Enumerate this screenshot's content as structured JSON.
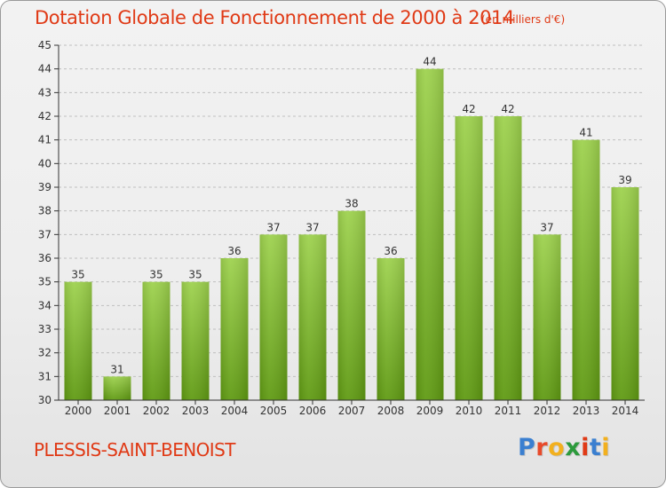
{
  "header": {
    "title": "Dotation Globale de Fonctionnement de 2000 à 2014",
    "subtitle": "(en milliers d'€)"
  },
  "footer": {
    "commune": "PLESSIS-SAINT-BENOIST",
    "logo_letters": [
      "P",
      "r",
      "o",
      "x",
      "i",
      "t",
      "i"
    ],
    "logo_colors": [
      "#3a7fd0",
      "#e84a2a",
      "#f2b01e",
      "#2c9a3c",
      "#e03a16",
      "#3a7fd0",
      "#f2b01e"
    ]
  },
  "colors": {
    "title": "#e03a16",
    "bar_light": "#9ed24e",
    "bar_dark": "#5f9a12",
    "grid": "#bfbfbf",
    "axis": "#333333"
  },
  "chart_data": {
    "type": "bar",
    "title": "Dotation Globale de Fonctionnement de 2000 à 2014",
    "xlabel": "",
    "ylabel": "(en milliers d'€)",
    "ylim": [
      30,
      45
    ],
    "yticks": [
      30,
      31,
      32,
      33,
      34,
      35,
      36,
      37,
      38,
      39,
      40,
      41,
      42,
      43,
      44,
      45
    ],
    "grid": true,
    "categories": [
      "2000",
      "2001",
      "2002",
      "2003",
      "2004",
      "2005",
      "2006",
      "2007",
      "2008",
      "2009",
      "2010",
      "2011",
      "2012",
      "2013",
      "2014"
    ],
    "values": [
      35,
      31,
      35,
      35,
      36,
      37,
      37,
      38,
      36,
      44,
      42,
      42,
      37,
      41,
      39
    ]
  }
}
